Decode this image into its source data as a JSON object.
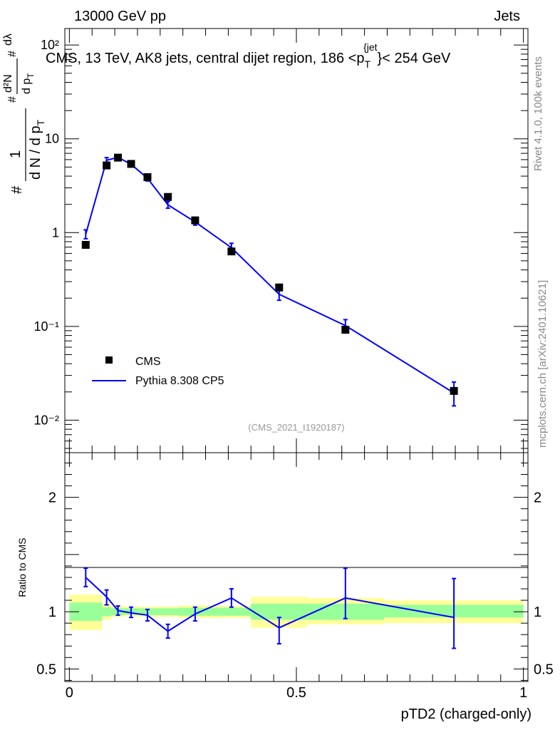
{
  "header": {
    "energy_label": "13000 GeV pp",
    "category_label": "Jets"
  },
  "side_labels": {
    "rivet": "Rivet 4.1.0,  100k events",
    "source": "mcplots.cern.ch [arXiv:2401.10621]"
  },
  "chart_data": [
    {
      "type": "line",
      "panel": "main",
      "title": "CMS, 13 TeV, AK8 jets, central dijet region, 186 <p_T^{jet}< 254 GeV",
      "title_parts": {
        "prefix": "CMS, 13 TeV, AK8 jets, central dijet region, 186 <p",
        "sub": "T",
        "sup": "{jet",
        "suffix": "}< 254 GeV"
      },
      "ylabel_parts": {
        "num": "1",
        "den": "d N / d p",
        "den_sub": "T",
        "hash": "#",
        "d2N": "d²N",
        "dpT": "d p",
        "dlambda": "dλ"
      },
      "yscale": "log",
      "ylim": [
        0.0045,
        150
      ],
      "xlim": [
        -0.01,
        1.01
      ],
      "y_ticks": [
        {
          "value": 0.01,
          "label": "10⁻²"
        },
        {
          "value": 0.1,
          "label": "10⁻¹"
        },
        {
          "value": 1,
          "label": "1"
        },
        {
          "value": 10,
          "label": "10"
        },
        {
          "value": 100,
          "label": "10²"
        }
      ],
      "watermark": "(CMS_2021_I1920187)",
      "legend": {
        "position": "middle-left",
        "entries": [
          "CMS",
          "Pythia 8.308 CP5"
        ]
      },
      "series": [
        {
          "name": "CMS",
          "style": "markers",
          "color": "#000000",
          "x": [
            0.036,
            0.082,
            0.107,
            0.136,
            0.172,
            0.217,
            0.277,
            0.357,
            0.462,
            0.608,
            0.847
          ],
          "y": [
            0.74,
            5.2,
            6.3,
            5.4,
            3.9,
            2.4,
            1.35,
            0.63,
            0.26,
            0.092,
            0.0205
          ]
        },
        {
          "name": "Pythia 8.308 CP5",
          "style": "line",
          "color": "#0000ff",
          "x": [
            0.036,
            0.082,
            0.107,
            0.136,
            0.172,
            0.217,
            0.277,
            0.357,
            0.462,
            0.608,
            0.847
          ],
          "y": [
            0.96,
            5.9,
            6.35,
            5.35,
            3.8,
            1.98,
            1.3,
            0.69,
            0.22,
            0.102,
            0.0195
          ],
          "err_low": [
            0.86,
            5.5,
            6.05,
            5.05,
            3.55,
            1.82,
            1.2,
            0.62,
            0.19,
            0.086,
            0.0142
          ],
          "err_high": [
            1.07,
            6.3,
            6.65,
            5.65,
            4.05,
            2.14,
            1.42,
            0.77,
            0.25,
            0.118,
            0.0255
          ]
        }
      ]
    },
    {
      "type": "line",
      "panel": "ratio",
      "ylabel": "Ratio to CMS",
      "xlabel": "pTD2 (charged-only)",
      "xlim": [
        -0.01,
        1.01
      ],
      "ylim": [
        0.39,
        2.39
      ],
      "x_ticks": [
        {
          "value": 0,
          "label": "0"
        },
        {
          "value": 0.5,
          "label": "0.5"
        },
        {
          "value": 1,
          "label": "1"
        }
      ],
      "y_ticks": [
        {
          "value": 0.5,
          "label": "0.5"
        },
        {
          "value": 1,
          "label": "1"
        },
        {
          "value": 2,
          "label": "2"
        }
      ],
      "bands": {
        "colors": {
          "inner": "#99ff99",
          "outer": "#ffff99"
        },
        "bins": [
          0,
          0.072,
          0.092,
          0.122,
          0.15,
          0.195,
          0.24,
          0.315,
          0.4,
          0.523,
          0.693,
          1.0
        ],
        "inner_low": [
          0.92,
          0.96,
          0.97,
          0.975,
          0.97,
          0.97,
          0.965,
          0.965,
          0.93,
          0.93,
          0.95
        ],
        "inner_high": [
          1.08,
          1.04,
          1.03,
          1.03,
          1.03,
          1.03,
          1.035,
          1.035,
          1.07,
          1.07,
          1.06
        ],
        "outer_low": [
          0.84,
          0.93,
          0.955,
          0.96,
          0.955,
          0.955,
          0.945,
          0.945,
          0.86,
          0.89,
          0.9
        ],
        "outer_high": [
          1.15,
          1.07,
          1.05,
          1.045,
          1.045,
          1.045,
          1.055,
          1.05,
          1.13,
          1.12,
          1.1
        ]
      },
      "series": [
        {
          "name": "Pythia 8.308 CP5",
          "color": "#0000ff",
          "x": [
            0.036,
            0.082,
            0.107,
            0.136,
            0.172,
            0.217,
            0.277,
            0.357,
            0.462,
            0.608,
            0.847
          ],
          "y": [
            1.3,
            1.13,
            1.01,
            0.99,
            0.97,
            0.83,
            0.98,
            1.12,
            0.86,
            1.12,
            0.95
          ],
          "err_low": [
            1.22,
            1.06,
            0.97,
            0.95,
            0.92,
            0.77,
            0.92,
            1.04,
            0.72,
            0.94,
            0.68
          ],
          "err_high": [
            1.38,
            1.19,
            1.05,
            1.04,
            1.02,
            0.89,
            1.04,
            1.2,
            0.95,
            1.38,
            1.29
          ]
        }
      ]
    }
  ]
}
